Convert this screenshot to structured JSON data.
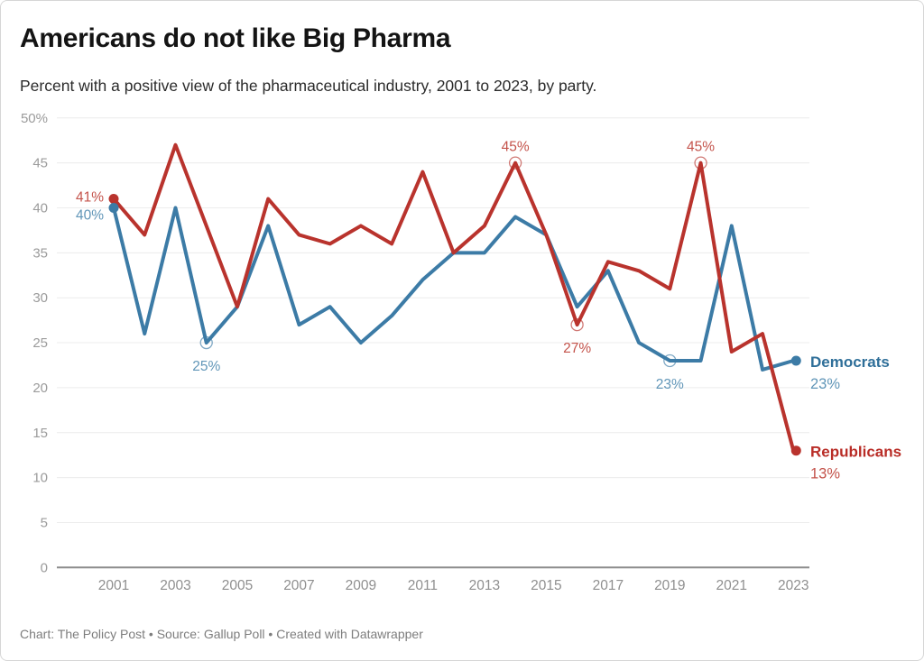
{
  "header": {
    "title": "Americans do not like Big Pharma",
    "subtitle": "Percent with a positive view of the pharmaceutical industry, 2001 to 2023, by party."
  },
  "footer": {
    "text": "Chart: The Policy Post • Source: Gallup Poll • Created with Datawrapper"
  },
  "chart_data": {
    "type": "line",
    "title": "Americans do not like Big Pharma",
    "subtitle": "Percent with a positive view of the pharmaceutical industry, 2001 to 2023, by party.",
    "x_label": "",
    "y_label": "",
    "ylim": [
      0,
      50
    ],
    "grid": "horizontal",
    "legend_position": "end-labels-right",
    "x": [
      2001,
      2002,
      2003,
      2004,
      2005,
      2006,
      2007,
      2008,
      2009,
      2010,
      2011,
      2012,
      2013,
      2014,
      2015,
      2016,
      2017,
      2018,
      2019,
      2020,
      2021,
      2022,
      2023
    ],
    "xticks": [
      2001,
      2003,
      2005,
      2007,
      2009,
      2011,
      2013,
      2015,
      2017,
      2019,
      2021,
      2023
    ],
    "yticks": [
      {
        "v": 50,
        "label": "50%"
      },
      {
        "v": 45,
        "label": "45"
      },
      {
        "v": 40,
        "label": "40"
      },
      {
        "v": 35,
        "label": "35"
      },
      {
        "v": 30,
        "label": "30"
      },
      {
        "v": 25,
        "label": "25"
      },
      {
        "v": 20,
        "label": "20"
      },
      {
        "v": 15,
        "label": "15"
      },
      {
        "v": 10,
        "label": "10"
      },
      {
        "v": 5,
        "label": "5"
      },
      {
        "v": 0,
        "label": "0"
      }
    ],
    "series": [
      {
        "name": "Democrats",
        "color": "#3c7ba6",
        "name_color": "#2f6f99",
        "label_color": "#6196b8",
        "values": [
          40,
          26,
          40,
          25,
          29,
          38,
          27,
          29,
          25,
          28,
          32,
          35,
          35,
          39,
          37,
          29,
          33,
          25,
          23,
          23,
          38,
          22,
          23
        ]
      },
      {
        "name": "Republicans",
        "color": "#b9332d",
        "name_color": "#b92d27",
        "label_color": "#c4534b",
        "values": [
          41,
          37,
          47,
          38,
          29,
          41,
          37,
          36,
          38,
          36,
          44,
          35,
          38,
          45,
          37,
          27,
          34,
          33,
          31,
          45,
          24,
          26,
          13
        ]
      }
    ],
    "point_annotations": [
      {
        "series": "Republicans",
        "year": 2001,
        "label": "41%",
        "placement": "left",
        "marker": "solid"
      },
      {
        "series": "Democrats",
        "year": 2001,
        "label": "40%",
        "placement": "left-below",
        "marker": "solid"
      },
      {
        "series": "Democrats",
        "year": 2004,
        "label": "25%",
        "placement": "below",
        "marker": "open"
      },
      {
        "series": "Republicans",
        "year": 2014,
        "label": "45%",
        "placement": "above",
        "marker": "open"
      },
      {
        "series": "Republicans",
        "year": 2016,
        "label": "27%",
        "placement": "below",
        "marker": "open"
      },
      {
        "series": "Democrats",
        "year": 2019,
        "label": "23%",
        "placement": "below",
        "marker": "open"
      },
      {
        "series": "Republicans",
        "year": 2020,
        "label": "45%",
        "placement": "above",
        "marker": "open"
      }
    ],
    "end_labels": [
      {
        "series": "Democrats",
        "name": "Democrats",
        "value": "23%"
      },
      {
        "series": "Republicans",
        "name": "Republicans",
        "value": "13%"
      }
    ],
    "axis_colors": {
      "gridline": "#ececec",
      "zero_line": "#8c8c8c",
      "y_tick_text": "#9b9b9b",
      "x_tick_text": "#8f8f8f"
    }
  }
}
